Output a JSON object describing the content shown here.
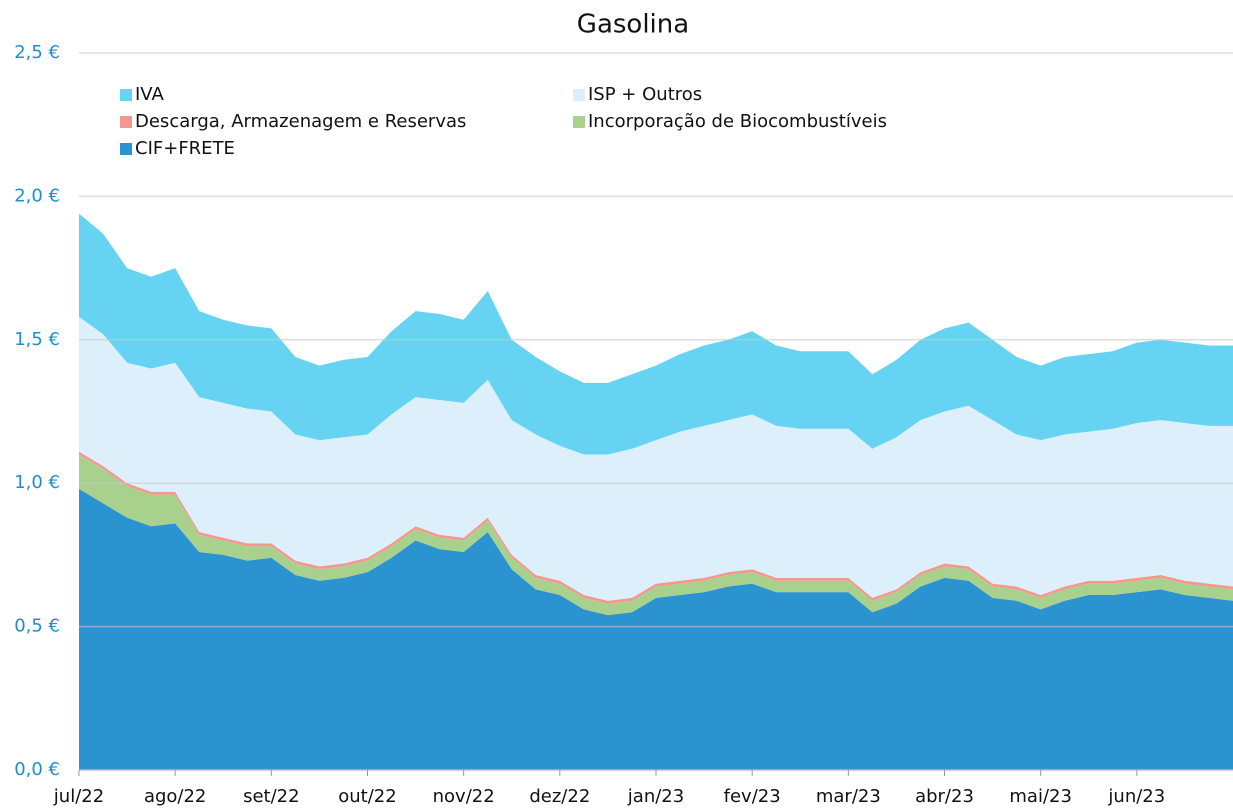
{
  "chart_data": {
    "type": "stacked_area",
    "title": "Gasolina",
    "categories": [
      "jul/22",
      null,
      null,
      null,
      "ago/22",
      null,
      null,
      null,
      "set/22",
      null,
      null,
      null,
      "out/22",
      null,
      null,
      null,
      "nov/22",
      null,
      null,
      null,
      "dez/22",
      null,
      null,
      null,
      "jan/23",
      null,
      null,
      null,
      "fev/23",
      null,
      null,
      null,
      "mar/23",
      null,
      null,
      null,
      "abr/23",
      null,
      null,
      null,
      "mai/23",
      null,
      null,
      null,
      "jun/23",
      null,
      null,
      null,
      null
    ],
    "series": [
      {
        "name": "CIF+FRETE",
        "color": "#2b93cf",
        "values": [
          0.98,
          0.93,
          0.88,
          0.85,
          0.86,
          0.76,
          0.75,
          0.73,
          0.74,
          0.68,
          0.66,
          0.67,
          0.69,
          0.74,
          0.8,
          0.77,
          0.76,
          0.83,
          0.7,
          0.63,
          0.61,
          0.56,
          0.54,
          0.55,
          0.6,
          0.61,
          0.62,
          0.64,
          0.65,
          0.62,
          0.62,
          0.62,
          0.62,
          0.55,
          0.58,
          0.64,
          0.67,
          0.66,
          0.6,
          0.59,
          0.56,
          0.59,
          0.61,
          0.61,
          0.62,
          0.63,
          0.61,
          0.6,
          0.59
        ]
      },
      {
        "name": "Incorporação de Biocombustíveis",
        "color": "#a9d18e",
        "values": [
          0.12,
          0.12,
          0.11,
          0.11,
          0.1,
          0.06,
          0.05,
          0.05,
          0.04,
          0.04,
          0.04,
          0.04,
          0.04,
          0.04,
          0.04,
          0.04,
          0.04,
          0.04,
          0.04,
          0.04,
          0.04,
          0.04,
          0.04,
          0.04,
          0.04,
          0.04,
          0.04,
          0.04,
          0.04,
          0.04,
          0.04,
          0.04,
          0.04,
          0.04,
          0.04,
          0.04,
          0.04,
          0.04,
          0.04,
          0.04,
          0.04,
          0.04,
          0.04,
          0.04,
          0.04,
          0.04,
          0.04,
          0.04,
          0.04
        ]
      },
      {
        "name": "Descarga, Armazenagem e Reservas",
        "color": "#f4978e",
        "values": [
          0.01,
          0.01,
          0.01,
          0.01,
          0.01,
          0.01,
          0.01,
          0.01,
          0.01,
          0.01,
          0.01,
          0.01,
          0.01,
          0.01,
          0.01,
          0.01,
          0.01,
          0.01,
          0.01,
          0.01,
          0.01,
          0.01,
          0.01,
          0.01,
          0.01,
          0.01,
          0.01,
          0.01,
          0.01,
          0.01,
          0.01,
          0.01,
          0.01,
          0.01,
          0.01,
          0.01,
          0.01,
          0.01,
          0.01,
          0.01,
          0.01,
          0.01,
          0.01,
          0.01,
          0.01,
          0.01,
          0.01,
          0.01,
          0.01
        ]
      },
      {
        "name": "ISP + Outros",
        "color": "#ddeffb",
        "values": [
          0.47,
          0.46,
          0.42,
          0.43,
          0.45,
          0.47,
          0.47,
          0.47,
          0.46,
          0.44,
          0.44,
          0.44,
          0.43,
          0.45,
          0.45,
          0.47,
          0.47,
          0.48,
          0.47,
          0.49,
          0.47,
          0.49,
          0.51,
          0.52,
          0.5,
          0.52,
          0.53,
          0.53,
          0.54,
          0.53,
          0.52,
          0.52,
          0.52,
          0.52,
          0.53,
          0.53,
          0.53,
          0.56,
          0.57,
          0.53,
          0.54,
          0.53,
          0.52,
          0.53,
          0.54,
          0.54,
          0.55,
          0.55,
          0.56
        ]
      },
      {
        "name": "IVA",
        "color": "#66d3f3",
        "values": [
          0.36,
          0.35,
          0.33,
          0.32,
          0.33,
          0.3,
          0.29,
          0.29,
          0.29,
          0.27,
          0.26,
          0.27,
          0.27,
          0.29,
          0.3,
          0.3,
          0.29,
          0.31,
          0.28,
          0.27,
          0.26,
          0.25,
          0.25,
          0.26,
          0.26,
          0.27,
          0.28,
          0.28,
          0.29,
          0.28,
          0.27,
          0.27,
          0.27,
          0.26,
          0.27,
          0.28,
          0.29,
          0.29,
          0.28,
          0.27,
          0.26,
          0.27,
          0.27,
          0.27,
          0.28,
          0.28,
          0.28,
          0.28,
          0.28
        ]
      }
    ],
    "ylim": [
      0,
      2.5
    ],
    "yticks": [
      {
        "value": 0,
        "label": "0,0 €"
      },
      {
        "value": 0.5,
        "label": "0,5 €"
      },
      {
        "value": 1,
        "label": "1,0 €"
      },
      {
        "value": 1.5,
        "label": "1,5 €"
      },
      {
        "value": 2,
        "label": "2,0 €"
      },
      {
        "value": 2.5,
        "label": "2,5 €"
      }
    ],
    "grid": true
  }
}
